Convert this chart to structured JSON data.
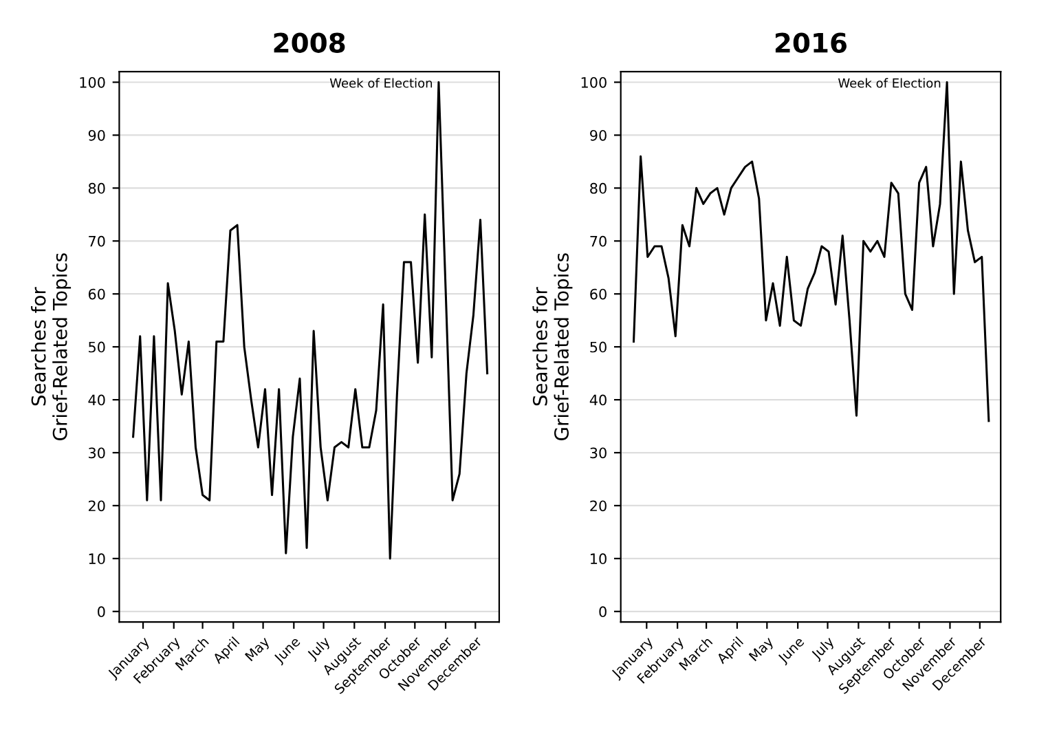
{
  "chart_data": [
    {
      "type": "line",
      "title": "2008",
      "ylabel": "Searches for\nGrief-Related Topics",
      "x": [
        "2008-01-05",
        "2008-01-12",
        "2008-01-19",
        "2008-01-26",
        "2008-02-02",
        "2008-02-09",
        "2008-02-16",
        "2008-02-23",
        "2008-03-01",
        "2008-03-08",
        "2008-03-15",
        "2008-03-22",
        "2008-03-29",
        "2008-04-05",
        "2008-04-12",
        "2008-04-19",
        "2008-04-26",
        "2008-05-03",
        "2008-05-10",
        "2008-05-17",
        "2008-05-24",
        "2008-05-31",
        "2008-06-07",
        "2008-06-14",
        "2008-06-21",
        "2008-06-28",
        "2008-07-05",
        "2008-07-12",
        "2008-07-19",
        "2008-07-26",
        "2008-08-02",
        "2008-08-09",
        "2008-08-16",
        "2008-08-23",
        "2008-08-30",
        "2008-09-06",
        "2008-09-13",
        "2008-09-20",
        "2008-09-27",
        "2008-10-04",
        "2008-10-11",
        "2008-10-18",
        "2008-10-25",
        "2008-11-01",
        "2008-11-08",
        "2008-11-15",
        "2008-11-22",
        "2008-11-29",
        "2008-12-06",
        "2008-12-13",
        "2008-12-20",
        "2008-12-27"
      ],
      "series": [
        {
          "color": "#000000",
          "values": [
            33,
            52,
            21,
            52,
            21,
            62,
            53,
            41,
            51,
            31,
            22,
            21,
            51,
            51,
            72,
            73,
            50,
            40,
            31,
            42,
            22,
            42,
            11,
            33,
            44,
            12,
            53,
            31,
            21,
            31,
            32,
            31,
            42,
            31,
            31,
            38,
            58,
            10,
            41,
            66,
            66,
            47,
            75,
            48,
            100,
            61,
            21,
            26,
            45,
            56,
            74,
            45
          ]
        }
      ],
      "xlim": [
        "2007-12-22",
        "2009-01-08"
      ],
      "xticks": [
        {
          "value": "2008-01-15",
          "label": "January"
        },
        {
          "value": "2008-02-15",
          "label": "February"
        },
        {
          "value": "2008-03-15",
          "label": "March"
        },
        {
          "value": "2008-04-15",
          "label": "April"
        },
        {
          "value": "2008-05-15",
          "label": "May"
        },
        {
          "value": "2008-06-15",
          "label": "June"
        },
        {
          "value": "2008-07-15",
          "label": "July"
        },
        {
          "value": "2008-08-15",
          "label": "August"
        },
        {
          "value": "2008-09-15",
          "label": "September"
        },
        {
          "value": "2008-10-15",
          "label": "October"
        },
        {
          "value": "2008-11-15",
          "label": "November"
        },
        {
          "value": "2008-12-15",
          "label": "December"
        }
      ],
      "ylim": [
        -2,
        102
      ],
      "yticks": [
        0,
        10,
        20,
        30,
        40,
        50,
        60,
        70,
        80,
        90,
        100
      ],
      "grid": "y",
      "line_style": "solid",
      "annotations": [
        {
          "text": "Week of Election",
          "x": "2008-11-08",
          "y": 100
        }
      ]
    },
    {
      "type": "line",
      "title": "2016",
      "ylabel": "Searches for\nGrief-Related Topics",
      "x": [
        "2016-01-02",
        "2016-01-09",
        "2016-01-16",
        "2016-01-23",
        "2016-01-30",
        "2016-02-06",
        "2016-02-13",
        "2016-02-20",
        "2016-02-27",
        "2016-03-05",
        "2016-03-12",
        "2016-03-19",
        "2016-03-26",
        "2016-04-02",
        "2016-04-09",
        "2016-04-16",
        "2016-04-23",
        "2016-04-30",
        "2016-05-07",
        "2016-05-14",
        "2016-05-21",
        "2016-05-28",
        "2016-06-04",
        "2016-06-11",
        "2016-06-18",
        "2016-06-25",
        "2016-07-02",
        "2016-07-09",
        "2016-07-16",
        "2016-07-23",
        "2016-07-30",
        "2016-08-06",
        "2016-08-13",
        "2016-08-20",
        "2016-08-27",
        "2016-09-03",
        "2016-09-10",
        "2016-09-17",
        "2016-09-24",
        "2016-10-01",
        "2016-10-08",
        "2016-10-15",
        "2016-10-22",
        "2016-10-29",
        "2016-11-05",
        "2016-11-12",
        "2016-11-19",
        "2016-11-26",
        "2016-12-03",
        "2016-12-10",
        "2016-12-17",
        "2016-12-24"
      ],
      "series": [
        {
          "color": "#000000",
          "values": [
            51,
            86,
            67,
            69,
            69,
            63,
            52,
            73,
            69,
            80,
            77,
            79,
            80,
            75,
            80,
            82,
            84,
            85,
            78,
            55,
            62,
            54,
            67,
            55,
            54,
            61,
            64,
            69,
            68,
            58,
            71,
            55,
            37,
            70,
            68,
            70,
            67,
            81,
            79,
            60,
            57,
            81,
            84,
            69,
            77,
            100,
            60,
            85,
            72,
            66,
            67,
            36
          ]
        }
      ],
      "xlim": [
        "2015-12-20",
        "2017-01-05"
      ],
      "xticks": [
        {
          "value": "2016-01-15",
          "label": "January"
        },
        {
          "value": "2016-02-15",
          "label": "February"
        },
        {
          "value": "2016-03-15",
          "label": "March"
        },
        {
          "value": "2016-04-15",
          "label": "April"
        },
        {
          "value": "2016-05-15",
          "label": "May"
        },
        {
          "value": "2016-06-15",
          "label": "June"
        },
        {
          "value": "2016-07-15",
          "label": "July"
        },
        {
          "value": "2016-08-15",
          "label": "August"
        },
        {
          "value": "2016-09-15",
          "label": "September"
        },
        {
          "value": "2016-10-15",
          "label": "October"
        },
        {
          "value": "2016-11-15",
          "label": "November"
        },
        {
          "value": "2016-12-15",
          "label": "December"
        }
      ],
      "ylim": [
        -2,
        102
      ],
      "yticks": [
        0,
        10,
        20,
        30,
        40,
        50,
        60,
        70,
        80,
        90,
        100
      ],
      "grid": "y",
      "line_style": "solid",
      "annotations": [
        {
          "text": "Week of Election",
          "x": "2016-11-12",
          "y": 100
        }
      ]
    }
  ]
}
